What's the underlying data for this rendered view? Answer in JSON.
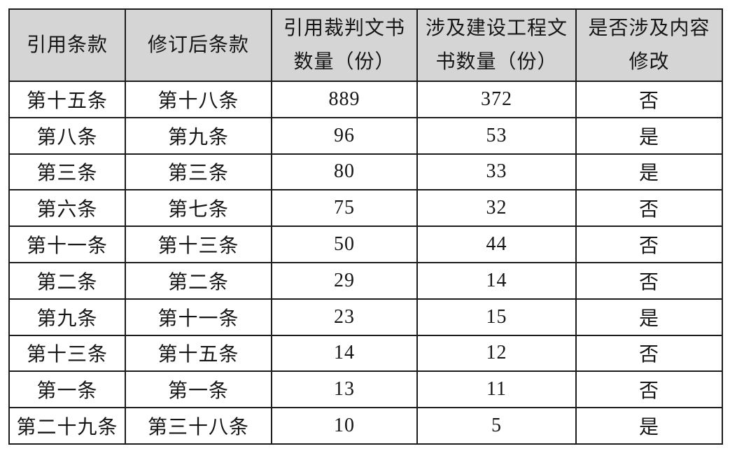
{
  "page": {
    "background_color": "#ffffff",
    "border_color": "#1c1c1c",
    "header_bg_color": "#d5d5d5",
    "text_color": "#161616"
  },
  "table": {
    "headers": [
      "引用条款",
      "修订后条款",
      "引用裁判文书\n数量（份）",
      "涉及建设工程文\n书数量（份）",
      "是否涉及内容\n修改"
    ],
    "rows": [
      {
        "cells": [
          "第十五条",
          "第十八条",
          "889",
          "372",
          "否"
        ]
      },
      {
        "cells": [
          "第八条",
          "第九条",
          "96",
          "53",
          "是"
        ]
      },
      {
        "cells": [
          "第三条",
          "第三条",
          "80",
          "33",
          "是"
        ]
      },
      {
        "cells": [
          "第六条",
          "第七条",
          "75",
          "32",
          "否"
        ]
      },
      {
        "cells": [
          "第十一条",
          "第十三条",
          "50",
          "44",
          "否"
        ]
      },
      {
        "cells": [
          "第二条",
          "第二条",
          "29",
          "14",
          "否"
        ]
      },
      {
        "cells": [
          "第九条",
          "第十一条",
          "23",
          "15",
          "是"
        ]
      },
      {
        "cells": [
          "第十三条",
          "第十五条",
          "14",
          "12",
          "否"
        ]
      },
      {
        "cells": [
          "第一条",
          "第一条",
          "13",
          "11",
          "否"
        ]
      },
      {
        "cells": [
          "第二十九条",
          "第三十八条",
          "10",
          "5",
          "是"
        ]
      }
    ]
  },
  "chart_data": {
    "type": "table",
    "columns": [
      "引用条款",
      "修订后条款",
      "引用裁判文书数量（份）",
      "涉及建设工程文书数量（份）",
      "是否涉及内容修改"
    ],
    "rows": [
      [
        "第十五条",
        "第十八条",
        889,
        372,
        "否"
      ],
      [
        "第八条",
        "第九条",
        96,
        53,
        "是"
      ],
      [
        "第三条",
        "第三条",
        80,
        33,
        "是"
      ],
      [
        "第六条",
        "第七条",
        75,
        32,
        "否"
      ],
      [
        "第十一条",
        "第十三条",
        50,
        44,
        "否"
      ],
      [
        "第二条",
        "第二条",
        29,
        14,
        "否"
      ],
      [
        "第九条",
        "第十一条",
        23,
        15,
        "是"
      ],
      [
        "第十三条",
        "第十五条",
        14,
        12,
        "否"
      ],
      [
        "第一条",
        "第一条",
        13,
        11,
        "否"
      ],
      [
        "第二十九条",
        "第三十八条",
        10,
        5,
        "是"
      ]
    ],
    "notes": "Header row gray (#d5d5d5), black grid borders, serif font, all cells center-aligned"
  }
}
